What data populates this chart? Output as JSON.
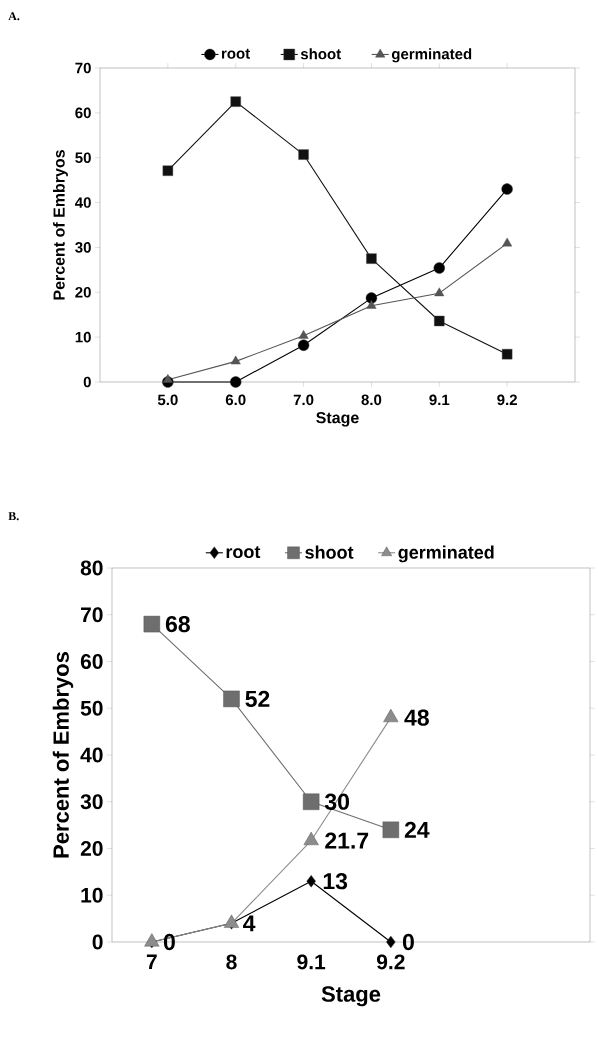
{
  "chart_data": [
    {
      "type": "line",
      "title": "A.",
      "xlabel": "Stage",
      "ylabel": "Percent of Embryos",
      "categories": [
        "5.0",
        "6.0",
        "7.0",
        "8.0",
        "9.1",
        "9.2"
      ],
      "series": [
        {
          "name": "root",
          "color": "#000000",
          "marker": "circle",
          "values": [
            0,
            0,
            8.2,
            18.7,
            25.4,
            43
          ]
        },
        {
          "name": "shoot",
          "color": "#111111",
          "marker": "square",
          "values": [
            47.1,
            62.5,
            50.7,
            27.5,
            13.6,
            6.2
          ]
        },
        {
          "name": "germinated",
          "color": "#555555",
          "marker": "triangle",
          "values": [
            0.5,
            4.6,
            10.3,
            17,
            19.8,
            30.9
          ]
        }
      ],
      "ylim": [
        0,
        70
      ],
      "yticks": [
        0,
        10,
        20,
        30,
        40,
        50,
        60,
        70
      ],
      "legend": "top",
      "line_style": "solid"
    },
    {
      "type": "line",
      "title": "B.",
      "xlabel": "Stage",
      "ylabel": "Percent of Embryos",
      "categories": [
        "7",
        "8",
        "9.1",
        "9.2",
        null,
        null
      ],
      "series": [
        {
          "name": "root",
          "color": "#000000",
          "marker": "diamond",
          "values": [
            0,
            4,
            13,
            0,
            null,
            null
          ],
          "value_labels": [
            "0",
            "4",
            "13",
            "0",
            null,
            null
          ]
        },
        {
          "name": "shoot",
          "color": "#6e6e6e",
          "marker": "square",
          "values": [
            68,
            52,
            30,
            24,
            null,
            null
          ],
          "value_labels": [
            "68",
            "52",
            "30",
            "24",
            null,
            null
          ]
        },
        {
          "name": "germinated",
          "color": "#8c8c8c",
          "marker": "triangle",
          "values": [
            0,
            4,
            21.7,
            48,
            null,
            null
          ],
          "value_labels": [
            null,
            null,
            "21.7",
            "48",
            null,
            null
          ]
        }
      ],
      "ylim": [
        0,
        80
      ],
      "yticks": [
        0,
        10,
        20,
        30,
        40,
        50,
        60,
        70,
        80
      ],
      "legend": "top",
      "line_style": "solid"
    }
  ]
}
